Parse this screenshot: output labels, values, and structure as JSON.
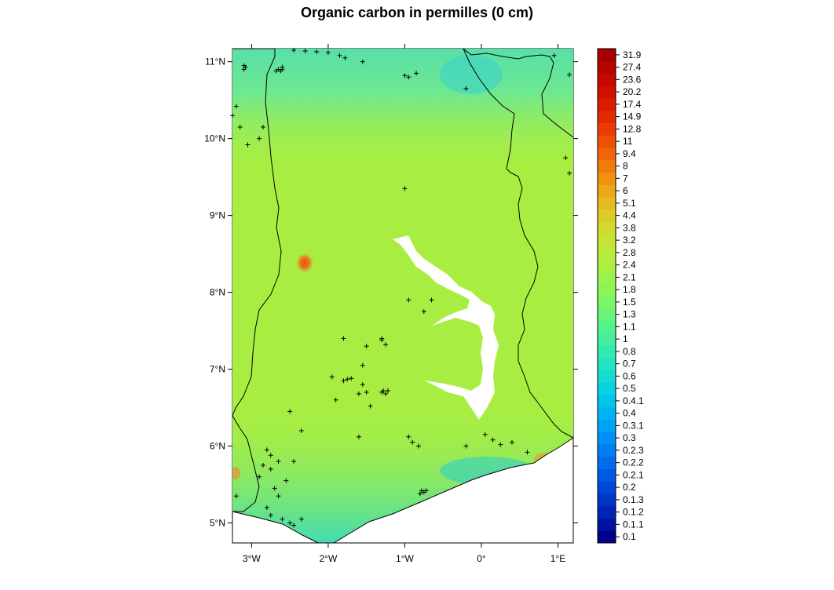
{
  "title": "Organic carbon in permilles (0 cm)",
  "x_ticks": [
    {
      "value": -3,
      "label": "3°W"
    },
    {
      "value": -2,
      "label": "2°W"
    },
    {
      "value": -1,
      "label": "1°W"
    },
    {
      "value": 0,
      "label": "0°"
    },
    {
      "value": 1,
      "label": "1°E"
    }
  ],
  "y_ticks": [
    {
      "value": 5,
      "label": "5°N"
    },
    {
      "value": 6,
      "label": "6°N"
    },
    {
      "value": 7,
      "label": "7°N"
    },
    {
      "value": 8,
      "label": "8°N"
    },
    {
      "value": 9,
      "label": "9°N"
    },
    {
      "value": 10,
      "label": "10°N"
    },
    {
      "value": 11,
      "label": "11°N"
    }
  ],
  "legend": {
    "labels": [
      "0.1",
      "0.1.1",
      "0.1.2",
      "0.1.3",
      "0.2",
      "0.2.1",
      "0.2.2",
      "0.2.3",
      "0.3",
      "0.3.1",
      "0.4",
      "0.4.1",
      "0.5",
      "0.6",
      "0.7",
      "0.8",
      "1",
      "1.1",
      "1.3",
      "1.5",
      "1.8",
      "2.1",
      "2.4",
      "2.8",
      "3.2",
      "3.8",
      "4.4",
      "5.1",
      "6",
      "7",
      "8",
      "9.4",
      "11",
      "12.8",
      "14.9",
      "17.4",
      "20.2",
      "23.6",
      "27.4",
      "31.9"
    ],
    "colors": [
      "#00008b",
      "#0012a0",
      "#0024b5",
      "#0036c8",
      "#0048d8",
      "#005ae4",
      "#006cee",
      "#007ef4",
      "#0090f6",
      "#00a2f6",
      "#00b4f2",
      "#00c4ea",
      "#08d2e0",
      "#14dcd2",
      "#22e4c2",
      "#32eab0",
      "#44ee9e",
      "#56f28a",
      "#68f478",
      "#7af666",
      "#8cf456",
      "#9cf24c",
      "#acee42",
      "#baea3a",
      "#c6e434",
      "#d2da2e",
      "#dccc28",
      "#e4bc20",
      "#eaa818",
      "#ee9210",
      "#f07c0a",
      "#f06606",
      "#ee5004",
      "#ea3c02",
      "#e42a00",
      "#dc1c00",
      "#d21000",
      "#c60800",
      "#b80400",
      "#a80000"
    ]
  },
  "chart_data": {
    "type": "heatmap",
    "title": "Organic carbon in permilles (0 cm)",
    "xlabel": "",
    "ylabel": "",
    "xlim": [
      -3.25,
      1.2
    ],
    "ylim": [
      4.74,
      11.17
    ],
    "colorbar_values": [
      0.1,
      0.11,
      0.12,
      0.13,
      0.2,
      0.21,
      0.22,
      0.23,
      0.3,
      0.31,
      0.4,
      0.41,
      0.5,
      0.6,
      0.7,
      0.8,
      1,
      1.1,
      1.3,
      1.5,
      1.8,
      2.1,
      2.4,
      2.8,
      3.2,
      3.8,
      4.4,
      5.1,
      6,
      7,
      8,
      9.4,
      11,
      12.8,
      14.9,
      17.4,
      20.2,
      23.6,
      27.4,
      31.9
    ],
    "colors": {
      "dominant": "#a8ee42",
      "north_band": "#62e896",
      "coast_band": "#54e6a8",
      "hotspot": "#e85010",
      "lake": "#ffffff"
    },
    "sample_points": [
      [
        -3.1,
        10.95
      ],
      [
        -3.08,
        10.93
      ],
      [
        -3.1,
        10.9
      ],
      [
        -2.65,
        10.9
      ],
      [
        -2.6,
        10.9
      ],
      [
        -2.62,
        10.88
      ],
      [
        -2.68,
        10.88
      ],
      [
        -2.6,
        10.93
      ],
      [
        -2.45,
        11.15
      ],
      [
        -2.3,
        11.14
      ],
      [
        -2.15,
        11.13
      ],
      [
        -2.0,
        11.12
      ],
      [
        -1.85,
        11.08
      ],
      [
        -1.78,
        11.05
      ],
      [
        -1.55,
        11.0
      ],
      [
        -1.0,
        10.82
      ],
      [
        -0.95,
        10.8
      ],
      [
        -0.85,
        10.85
      ],
      [
        -0.2,
        10.65
      ],
      [
        0.95,
        11.08
      ],
      [
        1.15,
        10.83
      ],
      [
        -3.2,
        10.42
      ],
      [
        -3.25,
        10.3
      ],
      [
        -3.15,
        10.15
      ],
      [
        -2.85,
        10.15
      ],
      [
        -2.9,
        10.0
      ],
      [
        -3.05,
        9.92
      ],
      [
        1.1,
        9.75
      ],
      [
        1.15,
        9.55
      ],
      [
        -1.0,
        9.35
      ],
      [
        -0.95,
        7.9
      ],
      [
        -0.65,
        7.9
      ],
      [
        -0.75,
        7.75
      ],
      [
        -1.3,
        7.38
      ],
      [
        -1.25,
        7.32
      ],
      [
        -1.3,
        7.4
      ],
      [
        -1.5,
        7.3
      ],
      [
        -1.8,
        7.4
      ],
      [
        -1.55,
        7.05
      ],
      [
        -1.7,
        6.88
      ],
      [
        -1.75,
        6.87
      ],
      [
        -1.8,
        6.85
      ],
      [
        -1.95,
        6.9
      ],
      [
        -1.55,
        6.8
      ],
      [
        -1.5,
        6.7
      ],
      [
        -1.6,
        6.68
      ],
      [
        -1.28,
        6.72
      ],
      [
        -1.25,
        6.68
      ],
      [
        -1.3,
        6.7
      ],
      [
        -1.22,
        6.72
      ],
      [
        -1.9,
        6.6
      ],
      [
        -1.45,
        6.52
      ],
      [
        -2.5,
        6.45
      ],
      [
        -2.35,
        6.2
      ],
      [
        -1.6,
        6.12
      ],
      [
        -0.95,
        6.12
      ],
      [
        -0.9,
        6.05
      ],
      [
        -0.82,
        6.0
      ],
      [
        -0.2,
        6.0
      ],
      [
        0.05,
        6.15
      ],
      [
        0.15,
        6.08
      ],
      [
        0.25,
        6.02
      ],
      [
        0.4,
        6.05
      ],
      [
        0.6,
        5.92
      ],
      [
        -2.8,
        5.95
      ],
      [
        -2.75,
        5.88
      ],
      [
        -2.85,
        5.75
      ],
      [
        -2.9,
        5.6
      ],
      [
        -2.75,
        5.7
      ],
      [
        -2.65,
        5.8
      ],
      [
        -2.45,
        5.8
      ],
      [
        -2.55,
        5.55
      ],
      [
        -2.7,
        5.45
      ],
      [
        -2.65,
        5.35
      ],
      [
        -2.8,
        5.2
      ],
      [
        -2.6,
        5.05
      ],
      [
        -2.5,
        5.0
      ],
      [
        -2.45,
        4.97
      ],
      [
        -2.35,
        5.05
      ],
      [
        -2.75,
        5.1
      ],
      [
        -3.2,
        5.35
      ],
      [
        -0.78,
        5.42
      ],
      [
        -0.75,
        5.4
      ],
      [
        -0.8,
        5.38
      ],
      [
        -0.72,
        5.42
      ]
    ]
  }
}
